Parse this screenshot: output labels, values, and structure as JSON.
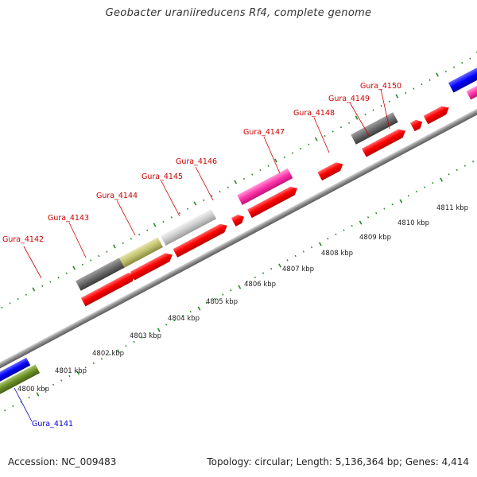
{
  "title": "Geobacter uraniireducens Rf4, complete genome",
  "footer": {
    "accession": "Accession: NC_009483",
    "summary": "Topology: circular; Length: 5,136,364 bp; Genes: 4,414"
  },
  "colors": {
    "cds_red": "#ff0000",
    "forward_label": "#cc0000",
    "reverse_label": "#0000cc",
    "ticks": "#228b22",
    "backbone": "#8a8a8a"
  },
  "scale_labels": [
    "4800 kbp",
    "4801 kbp",
    "4802 kbp",
    "4803 kbp",
    "4804 kbp",
    "4805 kbp",
    "4806 kbp",
    "4807 kbp",
    "4808 kbp",
    "4809 kbp",
    "4810 kbp",
    "4811 kbp"
  ],
  "genes": [
    {
      "name": "Gura_4141",
      "strand": "reverse"
    },
    {
      "name": "Gura_4142",
      "strand": "forward"
    },
    {
      "name": "Gura_4143",
      "strand": "forward"
    },
    {
      "name": "Gura_4144",
      "strand": "forward"
    },
    {
      "name": "Gura_4145",
      "strand": "forward"
    },
    {
      "name": "Gura_4146",
      "strand": "forward"
    },
    {
      "name": "Gura_4147",
      "strand": "forward"
    },
    {
      "name": "Gura_4148",
      "strand": "forward"
    },
    {
      "name": "Gura_4149",
      "strand": "forward"
    },
    {
      "name": "Gura_4150",
      "strand": "forward"
    }
  ]
}
